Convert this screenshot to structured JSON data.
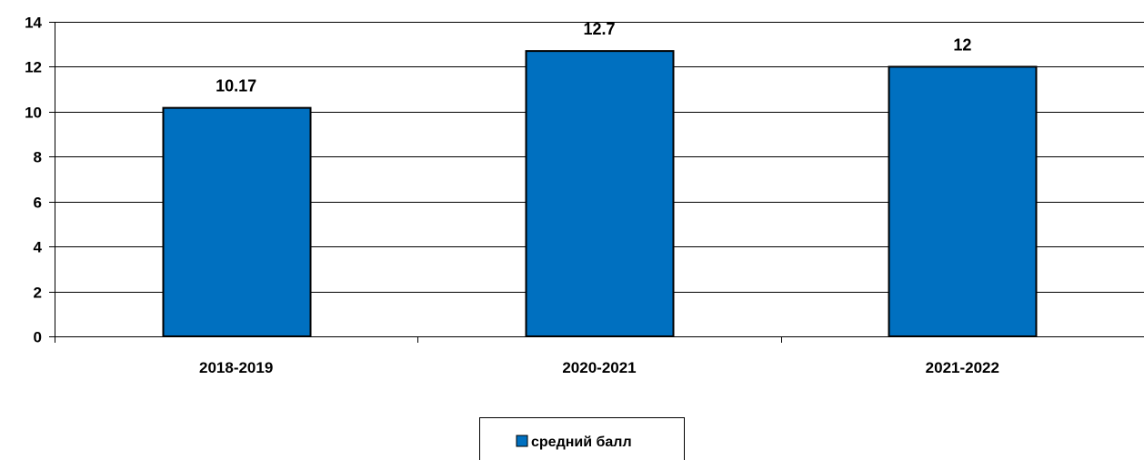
{
  "chart_data": {
    "type": "bar",
    "categories": [
      "2018-2019",
      "2020-2021",
      "2021-2022"
    ],
    "series": [
      {
        "name": "средний балл",
        "values": [
          10.17,
          12.7,
          12
        ],
        "value_labels": [
          "10.17",
          "12.7",
          "12"
        ],
        "color": "#0070C0"
      }
    ],
    "ylim": [
      0,
      14
    ],
    "yticks": [
      0,
      2,
      4,
      6,
      8,
      10,
      12,
      14
    ],
    "grid": true,
    "legend_position": "bottom"
  }
}
